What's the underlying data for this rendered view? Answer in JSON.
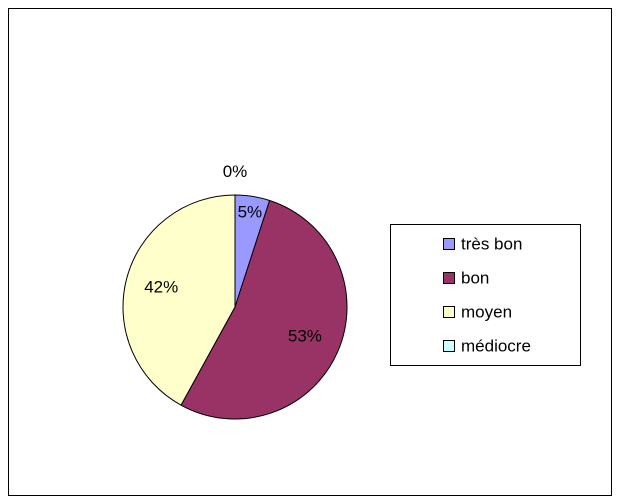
{
  "chart_data": {
    "type": "pie",
    "categories": [
      "très bon",
      "bon",
      "moyen",
      "médiocre"
    ],
    "values": [
      5,
      53,
      42,
      0
    ],
    "value_labels": [
      "5%",
      "53%",
      "42%",
      "0%"
    ],
    "colors": [
      "#9999ff",
      "#993366",
      "#ffffcc",
      "#ccffff"
    ],
    "legend": "right"
  }
}
